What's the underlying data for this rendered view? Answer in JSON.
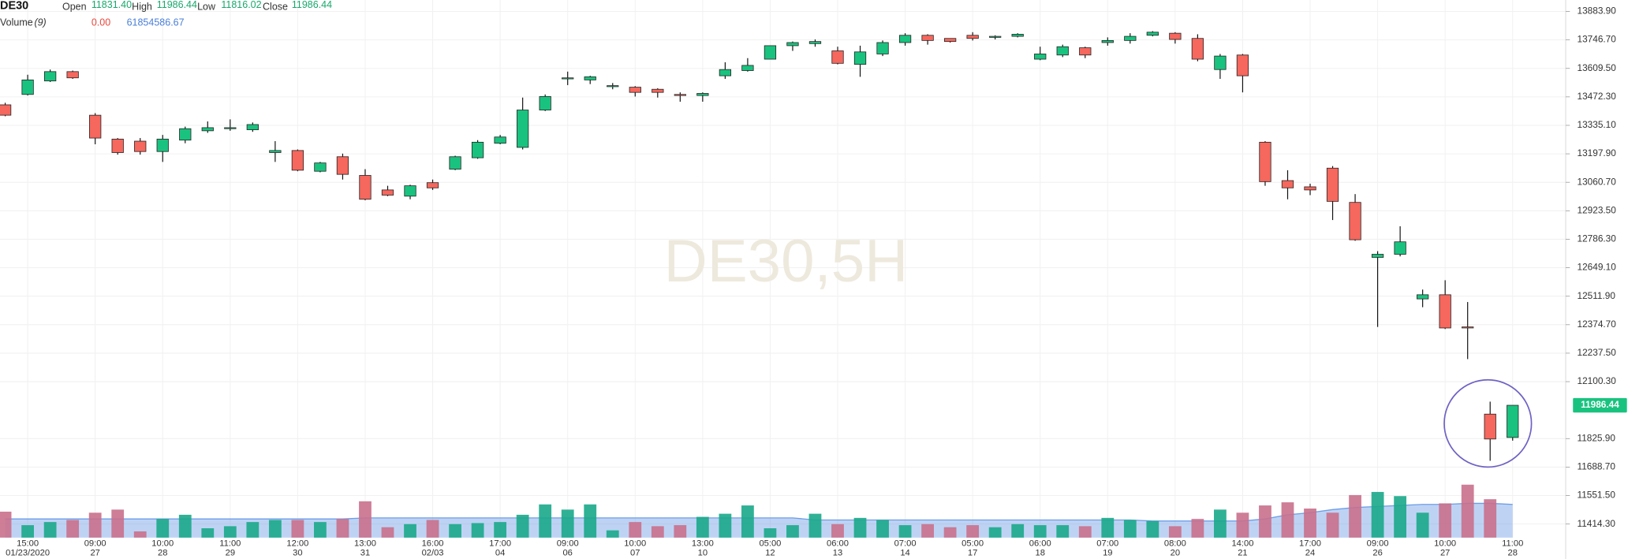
{
  "chart_data": {
    "type": "candlestick",
    "title": "DE30",
    "watermark": "DE30,5H",
    "header": {
      "open_label": "Open",
      "open": "11831.40",
      "high_label": "High",
      "high": "11986.44",
      "low_label": "Low",
      "low": "11816.02",
      "close_label": "Close",
      "close": "11986.44",
      "volume_label": "Volume",
      "volume_period": "(9)",
      "volume_change": "0.00",
      "volume_value": "61854586.67"
    },
    "categories": [
      null,
      "15:00",
      null,
      null,
      "09:00",
      null,
      null,
      "10:00",
      null,
      null,
      "11:00",
      null,
      null,
      "12:00",
      null,
      null,
      "13:00",
      null,
      null,
      "16:00",
      null,
      null,
      "17:00",
      null,
      null,
      "09:00",
      null,
      null,
      "10:00",
      null,
      null,
      "13:00",
      null,
      null,
      "05:00",
      null,
      null,
      "06:00",
      null,
      null,
      "07:00",
      null,
      null,
      "05:00",
      null,
      null,
      "06:00",
      null,
      null,
      "07:00",
      null,
      null,
      "08:00",
      null,
      null,
      "14:00",
      null,
      null,
      "17:00",
      null,
      null,
      "09:00",
      null,
      null,
      "10:00",
      null,
      null,
      "11:00"
    ],
    "category_dates": [
      null,
      "01/23/2020",
      null,
      null,
      "27",
      null,
      null,
      "28",
      null,
      null,
      "29",
      null,
      null,
      "30",
      null,
      null,
      "31",
      null,
      null,
      "02/03",
      null,
      null,
      "04",
      null,
      null,
      "06",
      null,
      null,
      "07",
      null,
      null,
      "10",
      null,
      null,
      "12",
      null,
      null,
      "13",
      null,
      null,
      "14",
      null,
      null,
      "17",
      null,
      null,
      "18",
      null,
      null,
      "19",
      null,
      null,
      "20",
      null,
      null,
      "21",
      null,
      null,
      "24",
      null,
      null,
      "26",
      null,
      null,
      "27",
      null,
      null,
      "28"
    ],
    "open": [
      13433.9,
      13483.9,
      13548.9,
      13593.9,
      13383.9,
      13268.9,
      13258.9,
      13208.9,
      13263.9,
      13308.9,
      13321.4,
      13313.9,
      13203.9,
      13213.9,
      13113.9,
      13183.9,
      13093.9,
      13023.9,
      12993.9,
      13058.9,
      13123.9,
      13178.9,
      13248.9,
      13228.9,
      13408.9,
      13561.4,
      13553.9,
      13523.9,
      13518.9,
      13508.9,
      13483.9,
      13478.9,
      13573.9,
      13598.9,
      13653.9,
      13718.9,
      13728.9,
      13693.9,
      13628.9,
      13678.9,
      13733.9,
      13768.9,
      13753.9,
      13768.9,
      13761.4,
      13763.9,
      13653.9,
      13673.9,
      13708.9,
      13733.9,
      13743.9,
      13768.9,
      13778.9,
      13753.9,
      13603.9,
      13673.9,
      13253.9,
      13068.9,
      13038.9,
      13128.9,
      12963.9,
      12698.9,
      12713.9,
      12498.9,
      12518.9,
      12363.9,
      11943.9,
      11831.4
    ],
    "high": [
      13443.9,
      13578.9,
      13603.9,
      13598.9,
      13393.9,
      13273.9,
      13273.9,
      13288.9,
      13328.9,
      13353.9,
      13363.9,
      13348.9,
      13258.9,
      13218.9,
      13158.9,
      13198.9,
      13123.9,
      13043.9,
      13048.9,
      13073.9,
      13188.9,
      13263.9,
      13288.9,
      13468.9,
      13483.9,
      13593.9,
      13573.9,
      13538.9,
      13523.9,
      13513.9,
      13493.9,
      13493.9,
      13638.9,
      13658.9,
      13718.9,
      13738.9,
      13748.9,
      13713.9,
      13718.9,
      13743.9,
      13778.9,
      13773.9,
      13753.9,
      13783.9,
      13768.9,
      13778.9,
      13713.9,
      13723.9,
      13713.9,
      13758.9,
      13778.9,
      13788.9,
      13783.9,
      13773.9,
      13678.9,
      13678.9,
      13258.9,
      13118.9,
      13053.9,
      13138.9,
      13003.9,
      12728.9,
      12848.9,
      12543.9,
      12588.9,
      12483.9,
      12003.9,
      11986.44
    ],
    "low": [
      13378.9,
      13478.9,
      13543.9,
      13558.9,
      13243.9,
      13193.9,
      13193.9,
      13158.9,
      13248.9,
      13298.9,
      13308.9,
      13303.9,
      13158.9,
      13113.9,
      13108.9,
      13073.9,
      12973.9,
      12993.9,
      12978.9,
      13023.9,
      13118.9,
      13173.9,
      13243.9,
      13218.9,
      13403.9,
      13528.9,
      13533.9,
      13508.9,
      13473.9,
      13468.9,
      13448.9,
      13448.9,
      13558.9,
      13593.9,
      13653.9,
      13693.9,
      13713.9,
      13628.9,
      13568.9,
      13668.9,
      13718.9,
      13723.9,
      13733.9,
      13743.9,
      13748.9,
      13758.9,
      13648.9,
      13663.9,
      13658.9,
      13718.9,
      13728.9,
      13763.9,
      13728.9,
      13643.9,
      13558.9,
      13493.9,
      13043.9,
      12978.9,
      12998.9,
      12878.9,
      12778.9,
      12363.9,
      12703.9,
      12458.9,
      12353.9,
      12208.9,
      11718.9,
      11816.02
    ],
    "close": [
      13383.9,
      13553.9,
      13593.9,
      13563.9,
      13273.9,
      13203.9,
      13208.9,
      13268.9,
      13318.9,
      13323.9,
      13323.9,
      13338.9,
      13213.9,
      13118.9,
      13153.9,
      13098.9,
      12978.9,
      12998.9,
      13043.9,
      13033.9,
      13183.9,
      13253.9,
      13278.9,
      13408.9,
      13473.9,
      13563.9,
      13568.9,
      13526.4,
      13493.9,
      13493.9,
      13481.4,
      13488.9,
      13603.9,
      13623.9,
      13718.9,
      13733.9,
      13738.9,
      13633.9,
      13688.9,
      13733.9,
      13768.9,
      13743.9,
      13738.9,
      13753.9,
      13763.9,
      13773.9,
      13678.9,
      13713.9,
      13673.9,
      13743.9,
      13763.9,
      13783.9,
      13748.9,
      13653.9,
      13668.9,
      13573.9,
      13063.9,
      13033.9,
      13023.9,
      12968.9,
      12783.9,
      12713.9,
      12773.9,
      12518.9,
      12358.9,
      12361.4,
      11823.9,
      11986.44
    ],
    "volume": [
      48330000,
      23200000,
      29000000,
      32860000,
      46390000,
      52190000,
      11600000,
      34790000,
      42530000,
      17400000,
      21260000,
      29000000,
      32860000,
      32860000,
      29000000,
      34790000,
      67660000,
      19330000,
      25130000,
      32860000,
      25130000,
      27060000,
      29000000,
      42530000,
      61860000,
      52190000,
      61860000,
      13530000,
      29000000,
      21260000,
      23200000,
      38660000,
      44460000,
      59920000,
      17400000,
      23200000,
      44460000,
      25130000,
      36730000,
      32860000,
      23200000,
      25130000,
      19330000,
      23200000,
      19330000,
      25130000,
      23200000,
      23200000,
      21260000,
      36730000,
      32860000,
      30930000,
      21260000,
      34790000,
      52190000,
      46390000,
      59920000,
      65720000,
      54120000,
      46390000,
      79250000,
      85050000,
      77320000,
      46390000,
      63790000,
      98580000,
      71520000,
      null
    ],
    "volume_ma": [
      34790000,
      34790000,
      34790000,
      34790000,
      34790000,
      34790000,
      34790000,
      34790000,
      34790000,
      34790000,
      34790000,
      34790000,
      34790000,
      34790000,
      34790000,
      34790000,
      36730000,
      36730000,
      36730000,
      36730000,
      36730000,
      36730000,
      36730000,
      36730000,
      36730000,
      36730000,
      36730000,
      36730000,
      36730000,
      36730000,
      36730000,
      36730000,
      36730000,
      36730000,
      36730000,
      36730000,
      32860000,
      32860000,
      32860000,
      32860000,
      32860000,
      32860000,
      32860000,
      32860000,
      32860000,
      32860000,
      32860000,
      32860000,
      32860000,
      32860000,
      32860000,
      30930000,
      30930000,
      30930000,
      30930000,
      30930000,
      34790000,
      42530000,
      46390000,
      52190000,
      56060000,
      57990000,
      59920000,
      61860000,
      61860000,
      63790000,
      63790000,
      61854586.67
    ],
    "ylim": [
      11348.9,
      13938.9
    ],
    "yticks": [
      {
        "value": 13883.9,
        "label": "13883.90"
      },
      {
        "value": 13746.7,
        "label": "13746.70"
      },
      {
        "value": 13609.5,
        "label": "13609.50"
      },
      {
        "value": 13472.3,
        "label": "13472.30"
      },
      {
        "value": 13335.1,
        "label": "13335.10"
      },
      {
        "value": 13197.9,
        "label": "13197.90"
      },
      {
        "value": 13060.7,
        "label": "13060.70"
      },
      {
        "value": 12923.5,
        "label": "12923.50"
      },
      {
        "value": 12786.3,
        "label": "12786.30"
      },
      {
        "value": 12649.1,
        "label": "12649.10"
      },
      {
        "value": 12511.9,
        "label": "12511.90"
      },
      {
        "value": 12374.7,
        "label": "12374.70"
      },
      {
        "value": 12237.5,
        "label": "12237.50"
      },
      {
        "value": 12100.3,
        "label": "12100.30"
      },
      {
        "value": 11825.9,
        "label": "11825.90"
      },
      {
        "value": 11688.7,
        "label": "11688.70"
      },
      {
        "value": 11551.5,
        "label": "11551.50"
      },
      {
        "value": 11414.3,
        "label": "11414.30"
      }
    ],
    "grid": true,
    "up_color": "#19c37f",
    "down_color": "#f6675d",
    "volume_up_color": "#1aa98a",
    "volume_down_color": "#c9708c",
    "volume_ma_color": "#6e9de6"
  }
}
